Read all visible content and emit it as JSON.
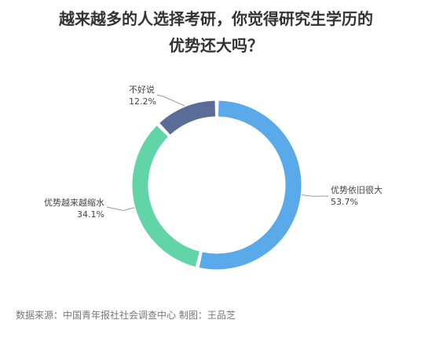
{
  "title_lines": [
    "越来越多的人选择考研，你觉得研究生学历的",
    "优势还大吗？"
  ],
  "source_note": "数据来源：中国青年报社社会调查中心 制图：王品芝",
  "chart_data": {
    "type": "pie",
    "subtype": "donut",
    "categories": [
      "优势依旧很大",
      "优势越来越缩水",
      "不好说"
    ],
    "values": [
      53.7,
      34.1,
      12.2
    ],
    "value_labels": [
      "53.7%",
      "34.1%",
      "12.2%"
    ],
    "colors": [
      "#5aa9e9",
      "#61d5a8",
      "#5a6d96"
    ],
    "legend": "none",
    "data_labels": "outside"
  }
}
